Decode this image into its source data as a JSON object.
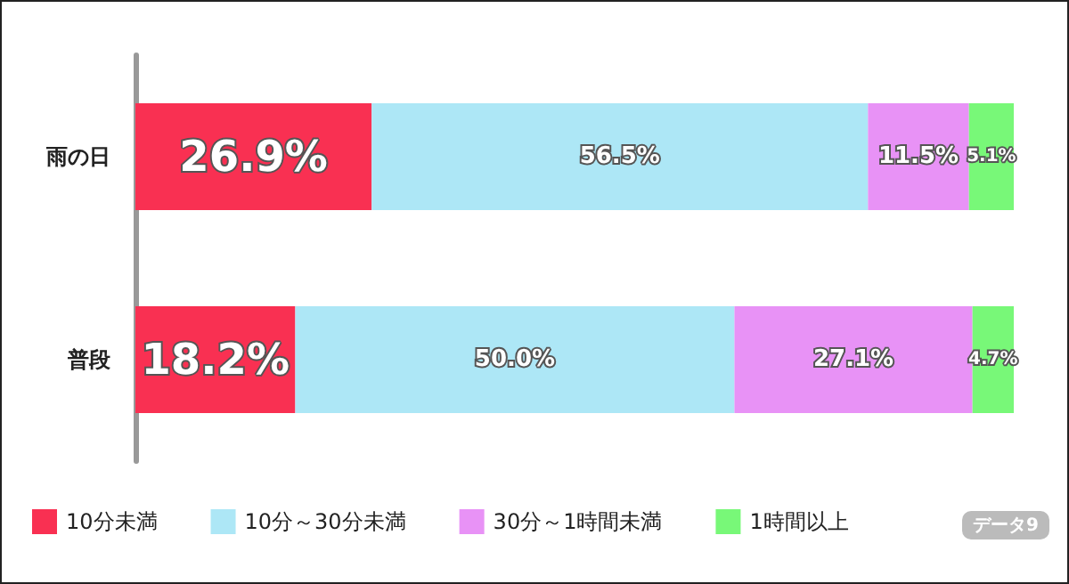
{
  "chart_data": {
    "type": "bar",
    "orientation": "horizontal",
    "stacked": true,
    "categories": [
      "雨の日",
      "普段"
    ],
    "xlim": [
      0,
      100
    ],
    "tick_labels": "y",
    "grid": false,
    "legend": "bottom",
    "series": [
      {
        "name": "10分未満",
        "color": "#f93052",
        "values": [
          26.9,
          18.2
        ],
        "value_labels": [
          "26.9%",
          "18.2%"
        ]
      },
      {
        "name": "10分～30分未満",
        "color": "#ade7f6",
        "values": [
          56.5,
          50.0
        ],
        "value_labels": [
          "56.5%",
          "50.0%"
        ]
      },
      {
        "name": "30分～1時間未満",
        "color": "#e892f6",
        "values": [
          11.5,
          27.1
        ],
        "value_labels": [
          "11.5%",
          "27.1%"
        ]
      },
      {
        "name": "1時間以上",
        "color": "#78f878",
        "values": [
          5.1,
          4.7
        ],
        "value_labels": [
          "5.1%",
          "4.7%"
        ]
      }
    ],
    "annotations": [
      "データ9"
    ]
  }
}
